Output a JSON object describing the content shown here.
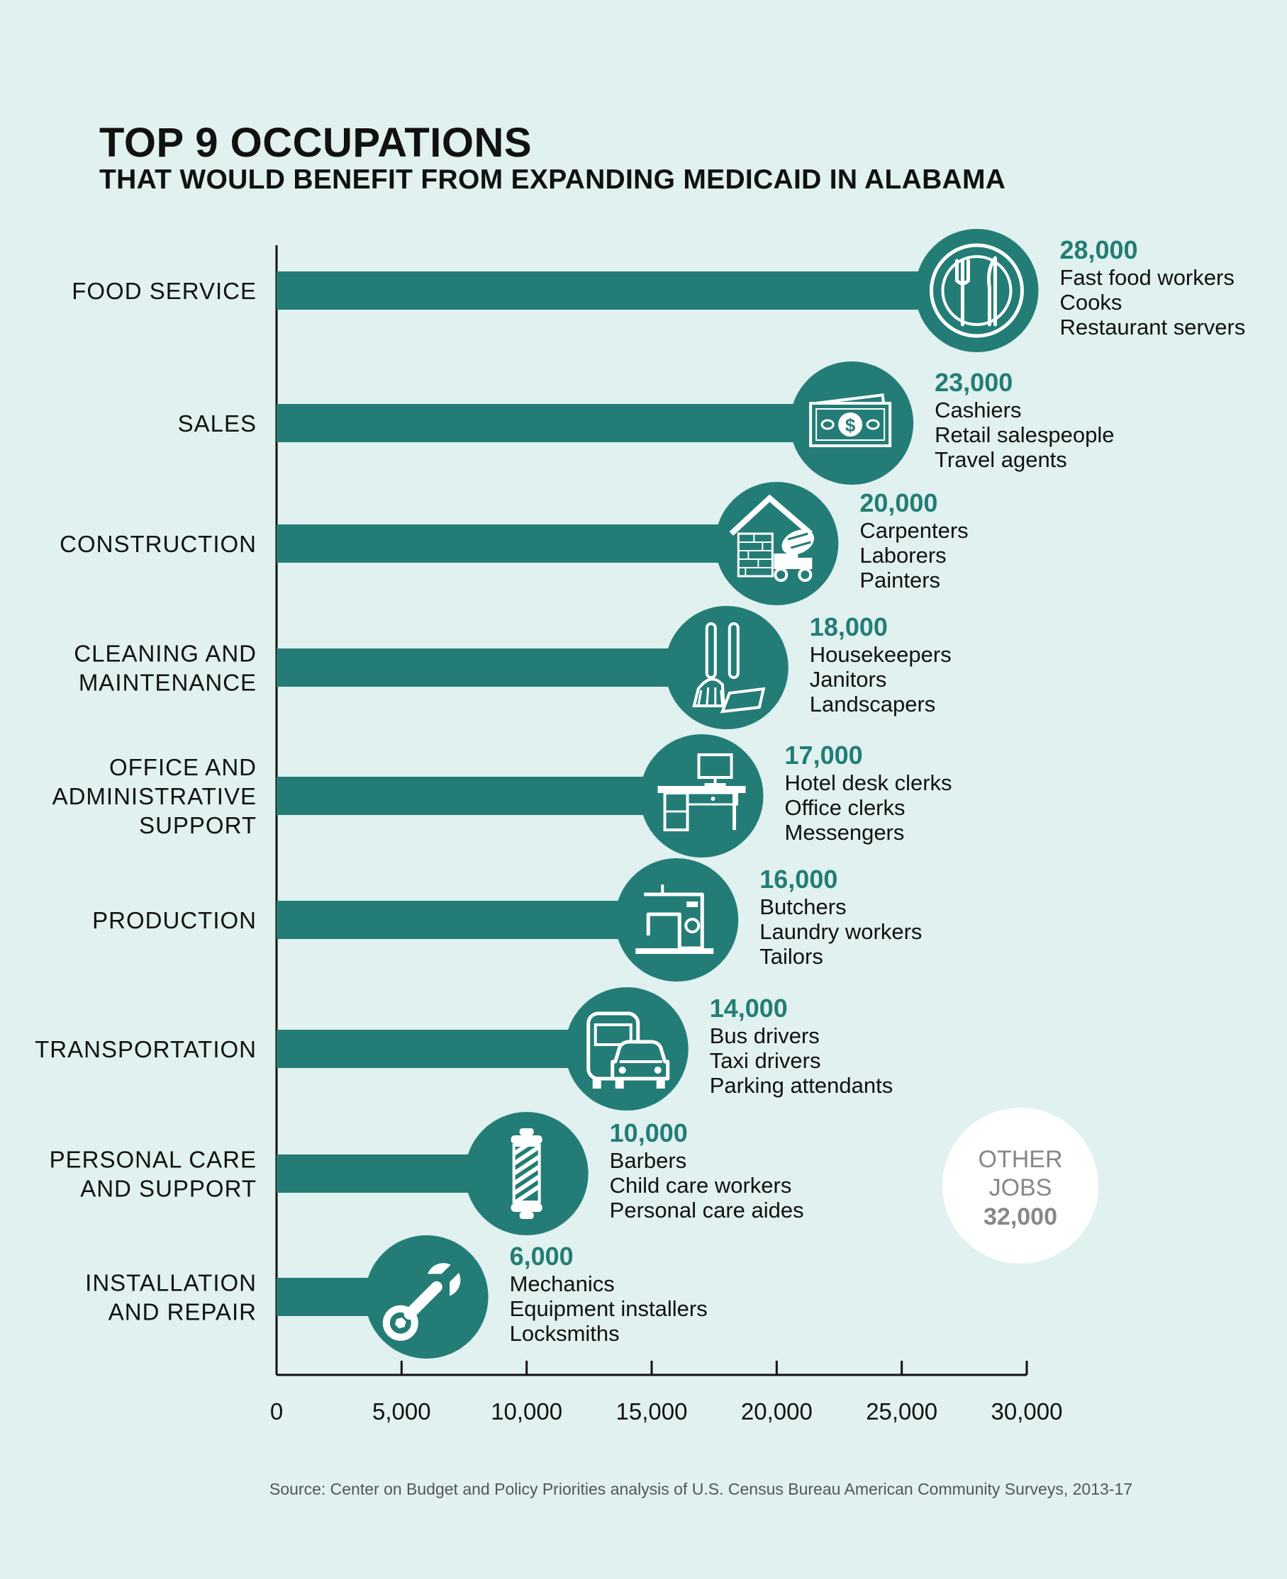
{
  "header": {
    "title": "TOP 9 OCCUPATIONS",
    "subtitle": "THAT WOULD BENEFIT FROM EXPANDING MEDICAID IN ALABAMA"
  },
  "source": "Source: Center on Budget and Policy Priorities analysis of U.S. Census Bureau American Community Surveys, 2013-17",
  "other_jobs": {
    "label_lines": [
      "OTHER",
      "JOBS"
    ],
    "value_label": "32,000"
  },
  "colors": {
    "bar": "#237d76",
    "value_text": "#237d76",
    "background": "#e0f1ef",
    "other_jobs_text": "#888888"
  },
  "chart_data": {
    "type": "bar",
    "orientation": "horizontal",
    "xlim": [
      0,
      30000
    ],
    "x_ticks": [
      0,
      5000,
      10000,
      15000,
      20000,
      25000,
      30000
    ],
    "x_tick_labels": [
      "0",
      "5,000",
      "10,000",
      "15,000",
      "20,000",
      "25,000",
      "30,000"
    ],
    "categories": [
      {
        "label_lines": [
          "FOOD SERVICE"
        ],
        "value": 28000,
        "value_label": "28,000",
        "examples": [
          "Fast food workers",
          "Cooks",
          "Restaurant servers"
        ],
        "icon": "fork-knife-plate-icon"
      },
      {
        "label_lines": [
          "SALES"
        ],
        "value": 23000,
        "value_label": "23,000",
        "examples": [
          "Cashiers",
          "Retail salespeople",
          "Travel agents"
        ],
        "icon": "dollar-bill-icon"
      },
      {
        "label_lines": [
          "CONSTRUCTION"
        ],
        "value": 20000,
        "value_label": "20,000",
        "examples": [
          "Carpenters",
          "Laborers",
          "Painters"
        ],
        "icon": "house-cement-mixer-icon"
      },
      {
        "label_lines": [
          "CLEANING AND",
          "MAINTENANCE"
        ],
        "value": 18000,
        "value_label": "18,000",
        "examples": [
          "Housekeepers",
          "Janitors",
          "Landscapers"
        ],
        "icon": "mop-dustpan-icon"
      },
      {
        "label_lines": [
          "OFFICE AND",
          "ADMINISTRATIVE",
          "SUPPORT"
        ],
        "value": 17000,
        "value_label": "17,000",
        "examples": [
          "Hotel desk clerks",
          "Office clerks",
          "Messengers"
        ],
        "icon": "desk-computer-icon"
      },
      {
        "label_lines": [
          "PRODUCTION"
        ],
        "value": 16000,
        "value_label": "16,000",
        "examples": [
          "Butchers",
          "Laundry workers",
          "Tailors"
        ],
        "icon": "sewing-machine-icon"
      },
      {
        "label_lines": [
          "TRANSPORTATION"
        ],
        "value": 14000,
        "value_label": "14,000",
        "examples": [
          "Bus drivers",
          "Taxi drivers",
          "Parking attendants"
        ],
        "icon": "bus-taxi-icon"
      },
      {
        "label_lines": [
          "PERSONAL CARE",
          "AND SUPPORT"
        ],
        "value": 10000,
        "value_label": "10,000",
        "examples": [
          "Barbers",
          "Child care workers",
          "Personal care aides"
        ],
        "icon": "barber-pole-icon"
      },
      {
        "label_lines": [
          "INSTALLATION",
          "AND REPAIR"
        ],
        "value": 6000,
        "value_label": "6,000",
        "examples": [
          "Mechanics",
          "Equipment installers",
          "Locksmiths"
        ],
        "icon": "wrench-icon"
      }
    ]
  }
}
